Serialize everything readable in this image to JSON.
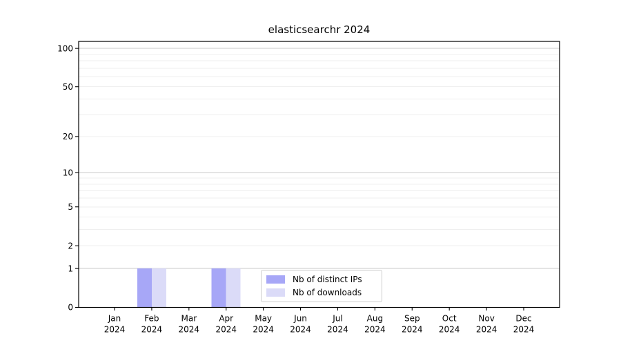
{
  "chart_data": {
    "type": "bar",
    "title": "elasticsearchr 2024",
    "categories": [
      {
        "month": "Jan",
        "year": "2024"
      },
      {
        "month": "Feb",
        "year": "2024"
      },
      {
        "month": "Mar",
        "year": "2024"
      },
      {
        "month": "Apr",
        "year": "2024"
      },
      {
        "month": "May",
        "year": "2024"
      },
      {
        "month": "Jun",
        "year": "2024"
      },
      {
        "month": "Jul",
        "year": "2024"
      },
      {
        "month": "Aug",
        "year": "2024"
      },
      {
        "month": "Sep",
        "year": "2024"
      },
      {
        "month": "Oct",
        "year": "2024"
      },
      {
        "month": "Nov",
        "year": "2024"
      },
      {
        "month": "Dec",
        "year": "2024"
      }
    ],
    "series": [
      {
        "name": "Nb of distinct IPs",
        "color": "#a7a7f7",
        "values": [
          0,
          1,
          0,
          1,
          0,
          0,
          0,
          0,
          0,
          0,
          0,
          0
        ]
      },
      {
        "name": "Nb of downloads",
        "color": "#dbdbf8",
        "values": [
          0,
          1,
          0,
          1,
          0,
          0,
          0,
          0,
          0,
          0,
          0,
          0
        ]
      }
    ],
    "yscale": "log1p",
    "yticks": [
      0,
      1,
      2,
      5,
      10,
      20,
      50,
      100
    ],
    "ylim": [
      0,
      113.4
    ],
    "xlabel": "",
    "ylabel": "",
    "grid": "horizontal",
    "legend_position": "lower center",
    "style": {
      "background": "#ffffff",
      "axis": "#000000",
      "text": "#000000",
      "grid_major": "#c9c9c9",
      "grid_minor": "#efefef",
      "legend_border": "#cccccc"
    }
  }
}
